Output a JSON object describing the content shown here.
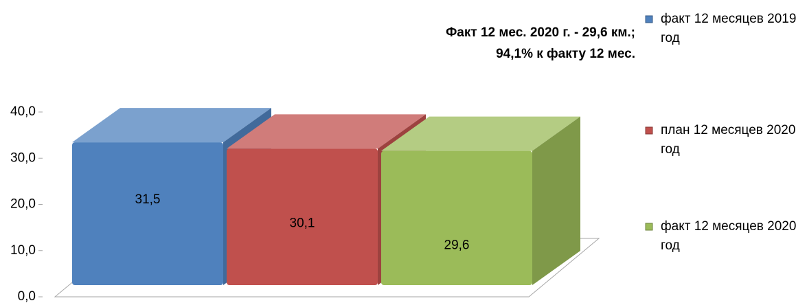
{
  "chart_data": {
    "type": "bar3d",
    "annotation": "Факт 12 мес. 2020 г. - 29,6 км.; 94,1% к факту 12 мес.",
    "categories": [
      null
    ],
    "series": [
      {
        "name": "факт 12 месяцев 2019 год",
        "color": "#4f81bd",
        "values": [
          31.5
        ],
        "value_labels": [
          "31,5"
        ]
      },
      {
        "name": "план 12 месяцев 2020 год",
        "color": "#c0504d",
        "values": [
          30.1
        ],
        "value_labels": [
          "30,1"
        ]
      },
      {
        "name": "факт 12 месяцев 2020 год",
        "color": "#9bbb59",
        "values": [
          29.6
        ],
        "value_labels": [
          "29,6"
        ]
      }
    ],
    "ylim": [
      0,
      40
    ],
    "yticks": [
      {
        "value": 0,
        "label": "0,0"
      },
      {
        "value": 10,
        "label": "10,0"
      },
      {
        "value": 20,
        "label": "20,0"
      },
      {
        "value": 30,
        "label": "30,0"
      },
      {
        "value": 40,
        "label": "40,0"
      }
    ],
    "legend": "right"
  }
}
